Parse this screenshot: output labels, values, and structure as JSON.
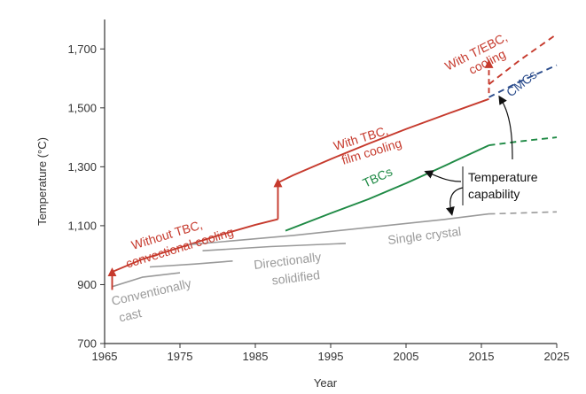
{
  "chart_data": {
    "type": "line",
    "xlabel": "Year",
    "ylabel": "Temperature (°C)",
    "xlim": [
      1965,
      2025
    ],
    "ylim": [
      700,
      1800
    ],
    "x_ticks": [
      "1965",
      "1975",
      "1985",
      "1995",
      "2005",
      "2015",
      "2025"
    ],
    "y_ticks": [
      "700",
      "900",
      "1,100",
      "1,300",
      "1,500",
      "1,700"
    ],
    "grid": false,
    "colors": {
      "red": "#c63a2d",
      "green": "#1f8a45",
      "blue": "#2b4c8c",
      "grey": "#9a9a9a",
      "axis": "#333333"
    },
    "series": [
      {
        "color": "red",
        "style": "solid",
        "points": [
          [
            1966,
            943
          ],
          [
            1970,
            986
          ],
          [
            1975,
            1026
          ],
          [
            1980,
            1066
          ],
          [
            1985,
            1103
          ],
          [
            1988,
            1122
          ]
        ]
      },
      {
        "color": "red",
        "style": "solid",
        "points": [
          [
            1988,
            1246
          ],
          [
            1990,
            1271
          ],
          [
            1995,
            1326
          ],
          [
            2000,
            1378
          ],
          [
            2005,
            1428
          ],
          [
            2010,
            1475
          ],
          [
            2016,
            1530
          ]
        ]
      },
      {
        "color": "red",
        "style": "dashed",
        "points": [
          [
            2016,
            1580
          ],
          [
            2020,
            1660
          ],
          [
            2025,
            1750
          ]
        ]
      },
      {
        "color": "green",
        "style": "solid",
        "points": [
          [
            1989,
            1083
          ],
          [
            1995,
            1142
          ],
          [
            2000,
            1190
          ],
          [
            2005,
            1244
          ],
          [
            2010,
            1302
          ],
          [
            2016,
            1373
          ]
        ]
      },
      {
        "color": "green",
        "style": "dashed",
        "points": [
          [
            2016,
            1373
          ],
          [
            2020,
            1386
          ],
          [
            2025,
            1400
          ]
        ]
      },
      {
        "color": "blue",
        "style": "dashed",
        "points": [
          [
            2016,
            1536
          ],
          [
            2020,
            1588
          ],
          [
            2025,
            1645
          ]
        ]
      },
      {
        "color": "grey",
        "style": "solid",
        "points": [
          [
            1966,
            893
          ],
          [
            1970,
            925
          ],
          [
            1975,
            940
          ]
        ]
      },
      {
        "color": "grey",
        "style": "solid",
        "points": [
          [
            1971,
            960
          ],
          [
            1977,
            970
          ],
          [
            1982,
            980
          ]
        ]
      },
      {
        "color": "grey",
        "style": "solid",
        "points": [
          [
            1978,
            1015
          ],
          [
            1987,
            1029
          ],
          [
            1997,
            1040
          ]
        ]
      },
      {
        "color": "grey",
        "style": "solid",
        "points": [
          [
            1976,
            1035
          ],
          [
            1990,
            1067
          ],
          [
            2000,
            1094
          ],
          [
            2010,
            1121
          ],
          [
            2016,
            1140
          ]
        ]
      },
      {
        "color": "grey",
        "style": "dashed",
        "points": [
          [
            2016,
            1140
          ],
          [
            2020,
            1143
          ],
          [
            2025,
            1147
          ]
        ]
      }
    ],
    "arrows": [
      {
        "color": "red",
        "from": [
          1966,
          882
        ],
        "to": [
          1966,
          943
        ]
      },
      {
        "color": "red",
        "from": [
          1988,
          1122
        ],
        "to": [
          1988,
          1246
        ]
      },
      {
        "color": "red",
        "from": [
          2016,
          1550
        ],
        "to": [
          2016,
          1650
        ]
      }
    ],
    "annotations": {
      "without_tbc_1": "Without TBC,",
      "without_tbc_2": "convectional cooling",
      "with_tbc_1": "With TBC,",
      "with_tbc_2": "film cooling",
      "with_tebc_1": "With T/EBC,",
      "with_tebc_2": "cooling",
      "tbcs": "TBCs",
      "cmcs": "CMCs",
      "temp_capability_1": "Temperature",
      "temp_capability_2": "capability",
      "single_crystal": "Single crystal",
      "directionally_1": "Directionally",
      "directionally_2": "solidified",
      "conventionally_1": "Conventionally",
      "conventionally_2": "cast"
    }
  }
}
